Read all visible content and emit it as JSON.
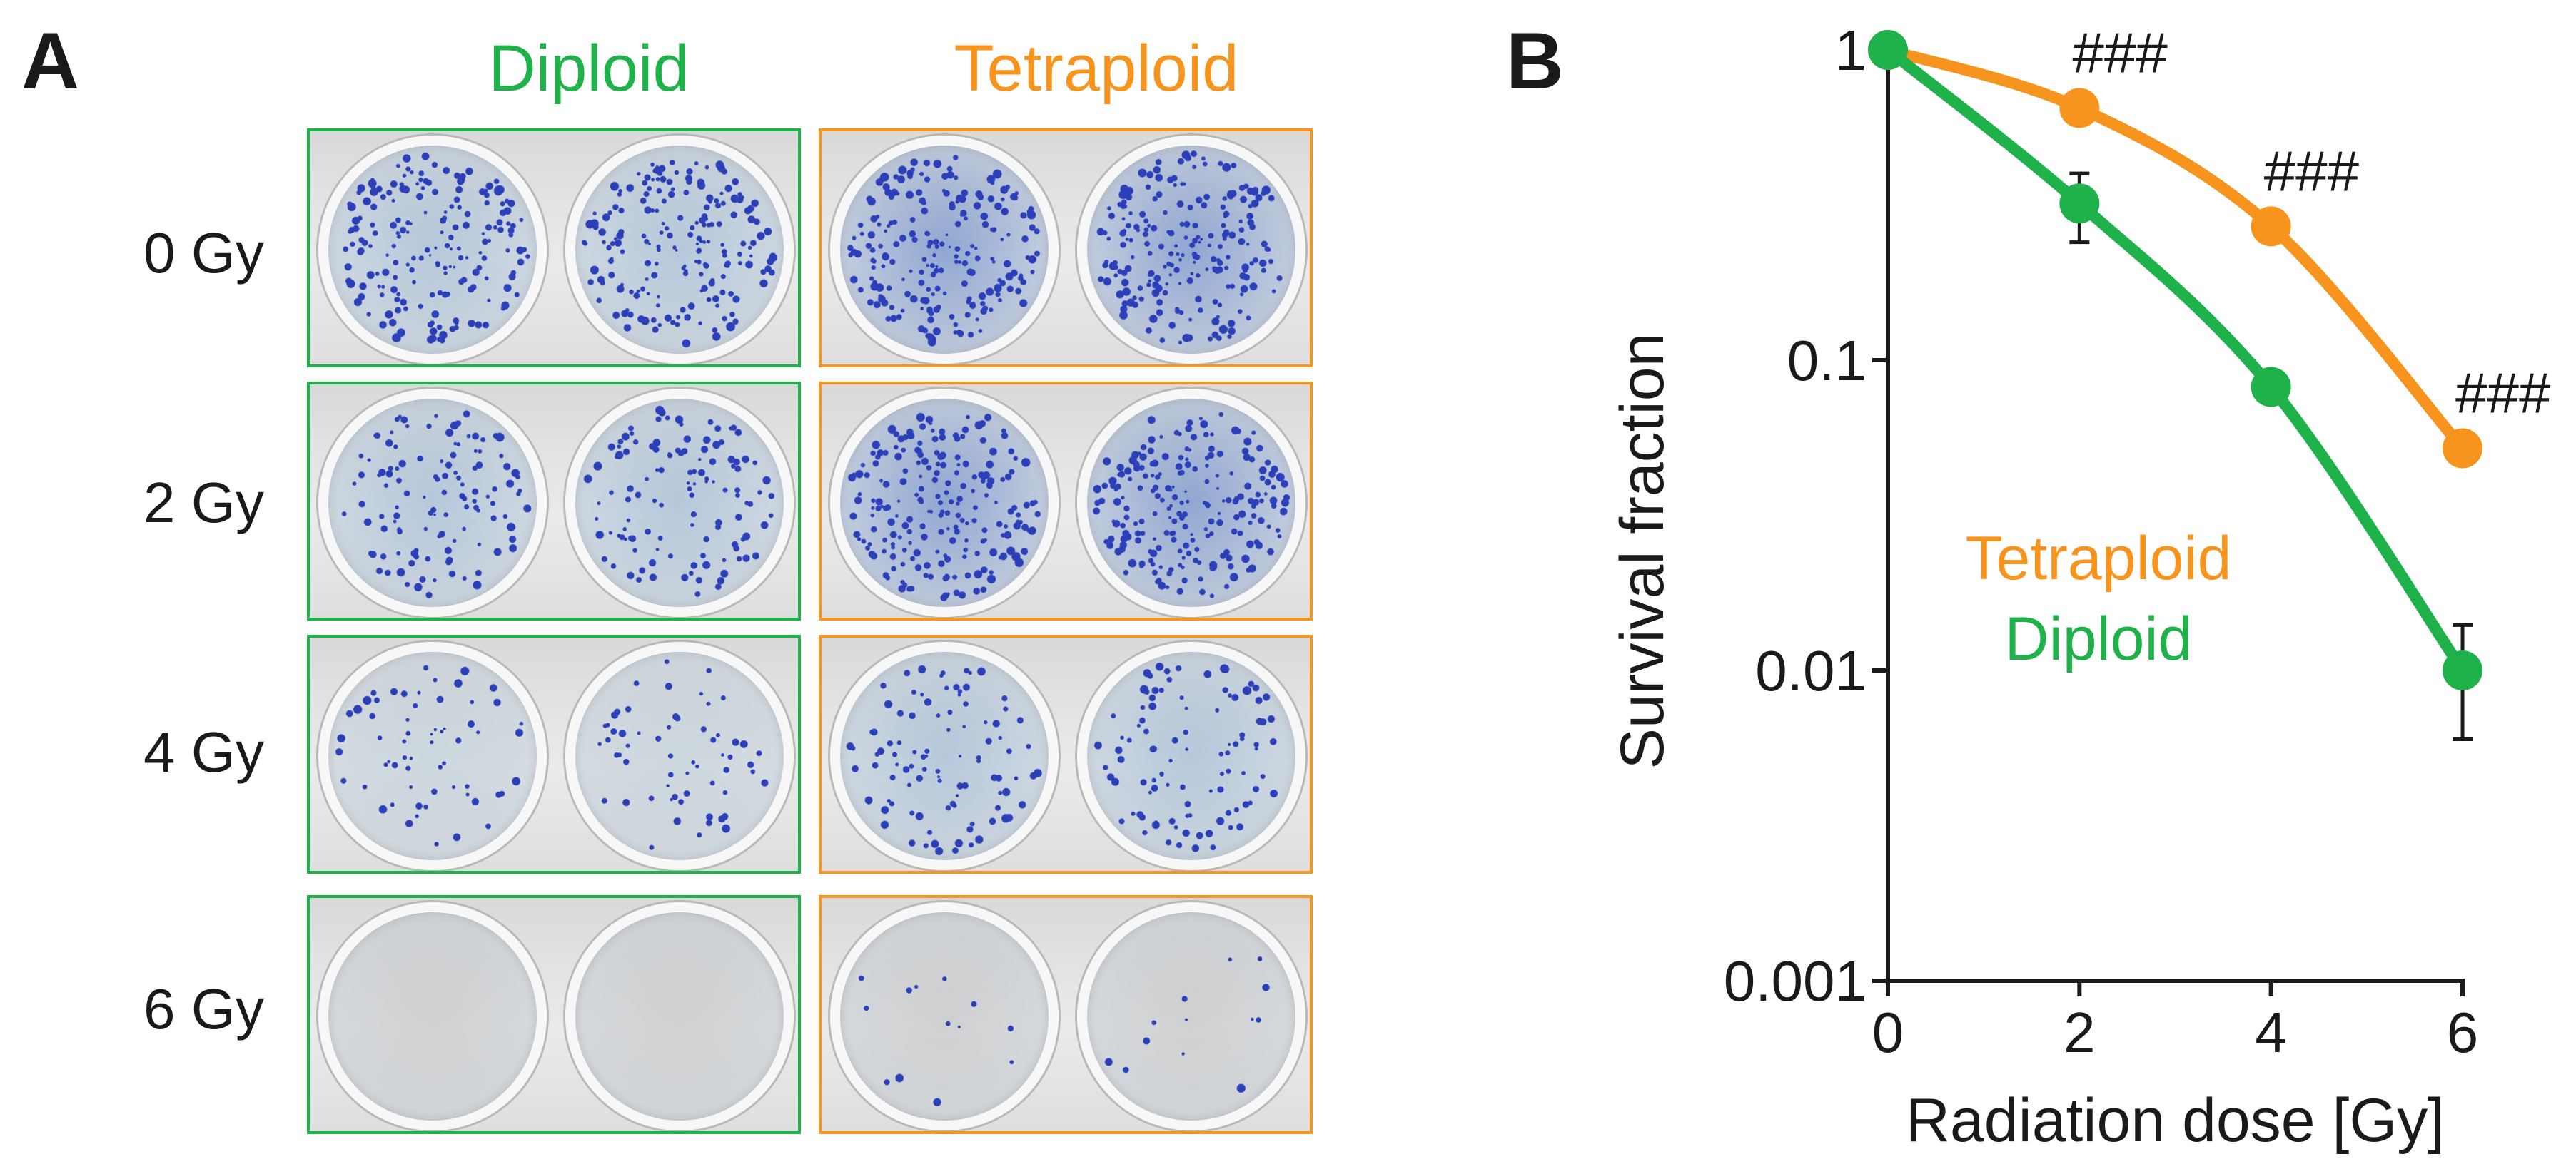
{
  "panel_a": {
    "letter": "A",
    "columns": [
      {
        "label": "Diploid",
        "color": "#1fb24a"
      },
      {
        "label": "Tetraploid",
        "color": "#f7941d"
      }
    ],
    "rows": [
      "0 Gy",
      "2 Gy",
      "4 Gy",
      "6 Gy"
    ],
    "colony_density": {
      "Diploid": [
        0.9,
        0.55,
        0.28,
        0.0
      ],
      "Tetraploid": [
        1.0,
        1.0,
        0.45,
        0.06
      ]
    }
  },
  "panel_b": {
    "letter": "B"
  },
  "colors": {
    "diploid": "#1fb24a",
    "tetraploid": "#f7941d",
    "axis": "#1a1a1a",
    "colony": "#2a3fb8"
  },
  "chart_data": {
    "type": "line",
    "xlabel": "Radiation dose [Gy]",
    "ylabel": "Survival fraction",
    "x_ticks": [
      "0",
      "2",
      "4",
      "6"
    ],
    "y_ticks": [
      "1",
      "0.1",
      "0.01",
      "0.001"
    ],
    "y_scale": "log",
    "xlim": [
      0,
      6
    ],
    "ylim": [
      0.001,
      1
    ],
    "grid": false,
    "legend_position": "left-middle",
    "series": [
      {
        "name": "Tetraploid",
        "color": "#f7941d",
        "x": [
          0,
          2,
          4,
          6
        ],
        "y": [
          1,
          0.65,
          0.27,
          0.052
        ],
        "err": [
          0,
          0,
          0,
          0
        ]
      },
      {
        "name": "Diploid",
        "color": "#1fb24a",
        "x": [
          0,
          2,
          4,
          6
        ],
        "y": [
          1,
          0.32,
          0.082,
          0.01
        ],
        "err": [
          0,
          0.08,
          0.008,
          0.004
        ]
      }
    ],
    "annotations": [
      {
        "text": "###",
        "x": 2,
        "y": 0.65
      },
      {
        "text": "###",
        "x": 4,
        "y": 0.27
      },
      {
        "text": "###",
        "x": 6,
        "y": 0.052
      }
    ]
  }
}
